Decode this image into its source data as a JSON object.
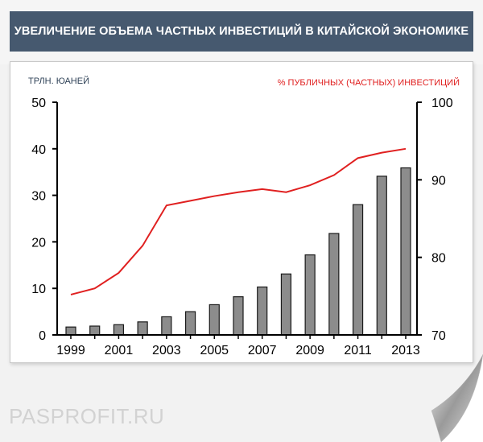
{
  "header": {
    "title": "УВЕЛИЧЕНИЕ ОБЪЕМА ЧАСТНЫХ ИНВЕСТИЦИЙ В КИТАЙСКОЙ ЭКОНОМИКЕ"
  },
  "watermark": {
    "text": "PASPROFIT.RU"
  },
  "colors": {
    "header_bg": "#46596f",
    "bar": "#8c8c8c",
    "line": "#e02020",
    "left_label": "#2f4257"
  },
  "chart_data": {
    "type": "bar",
    "title": "УВЕЛИЧЕНИЕ ОБЪЕМА ЧАСТНЫХ ИНВЕСТИЦИЙ В КИТАЙСКОЙ ЭКОНОМИКЕ",
    "ylabel": "ТРЛН. ЮАНЕЙ",
    "y2label": "% ПУБЛИЧНЫХ (ЧАСТНЫХ) ИНВЕСТИЦИЙ",
    "x": [
      1999,
      2000,
      2001,
      2002,
      2003,
      2004,
      2005,
      2006,
      2007,
      2008,
      2009,
      2010,
      2011,
      2012,
      2013
    ],
    "xtick_labels": [
      "1999",
      "2001",
      "2003",
      "2005",
      "2007",
      "2009",
      "2011",
      "2013"
    ],
    "ylim": [
      0,
      50
    ],
    "yticks": [
      0,
      10,
      20,
      30,
      40,
      50
    ],
    "y2lim": [
      70,
      100
    ],
    "y2ticks": [
      70,
      80,
      90,
      100
    ],
    "series": [
      {
        "type": "bar",
        "axis": "left",
        "values": [
          1.7,
          1.9,
          2.2,
          2.8,
          3.9,
          5.0,
          6.5,
          8.2,
          10.3,
          13.1,
          17.2,
          21.8,
          28.0,
          34.1,
          35.9
        ]
      },
      {
        "type": "line",
        "axis": "right",
        "values": [
          75.2,
          76.0,
          78.0,
          81.5,
          86.7,
          87.3,
          87.9,
          88.4,
          88.8,
          88.4,
          89.3,
          90.6,
          92.8,
          93.5,
          94.0
        ]
      }
    ],
    "grid": false
  }
}
